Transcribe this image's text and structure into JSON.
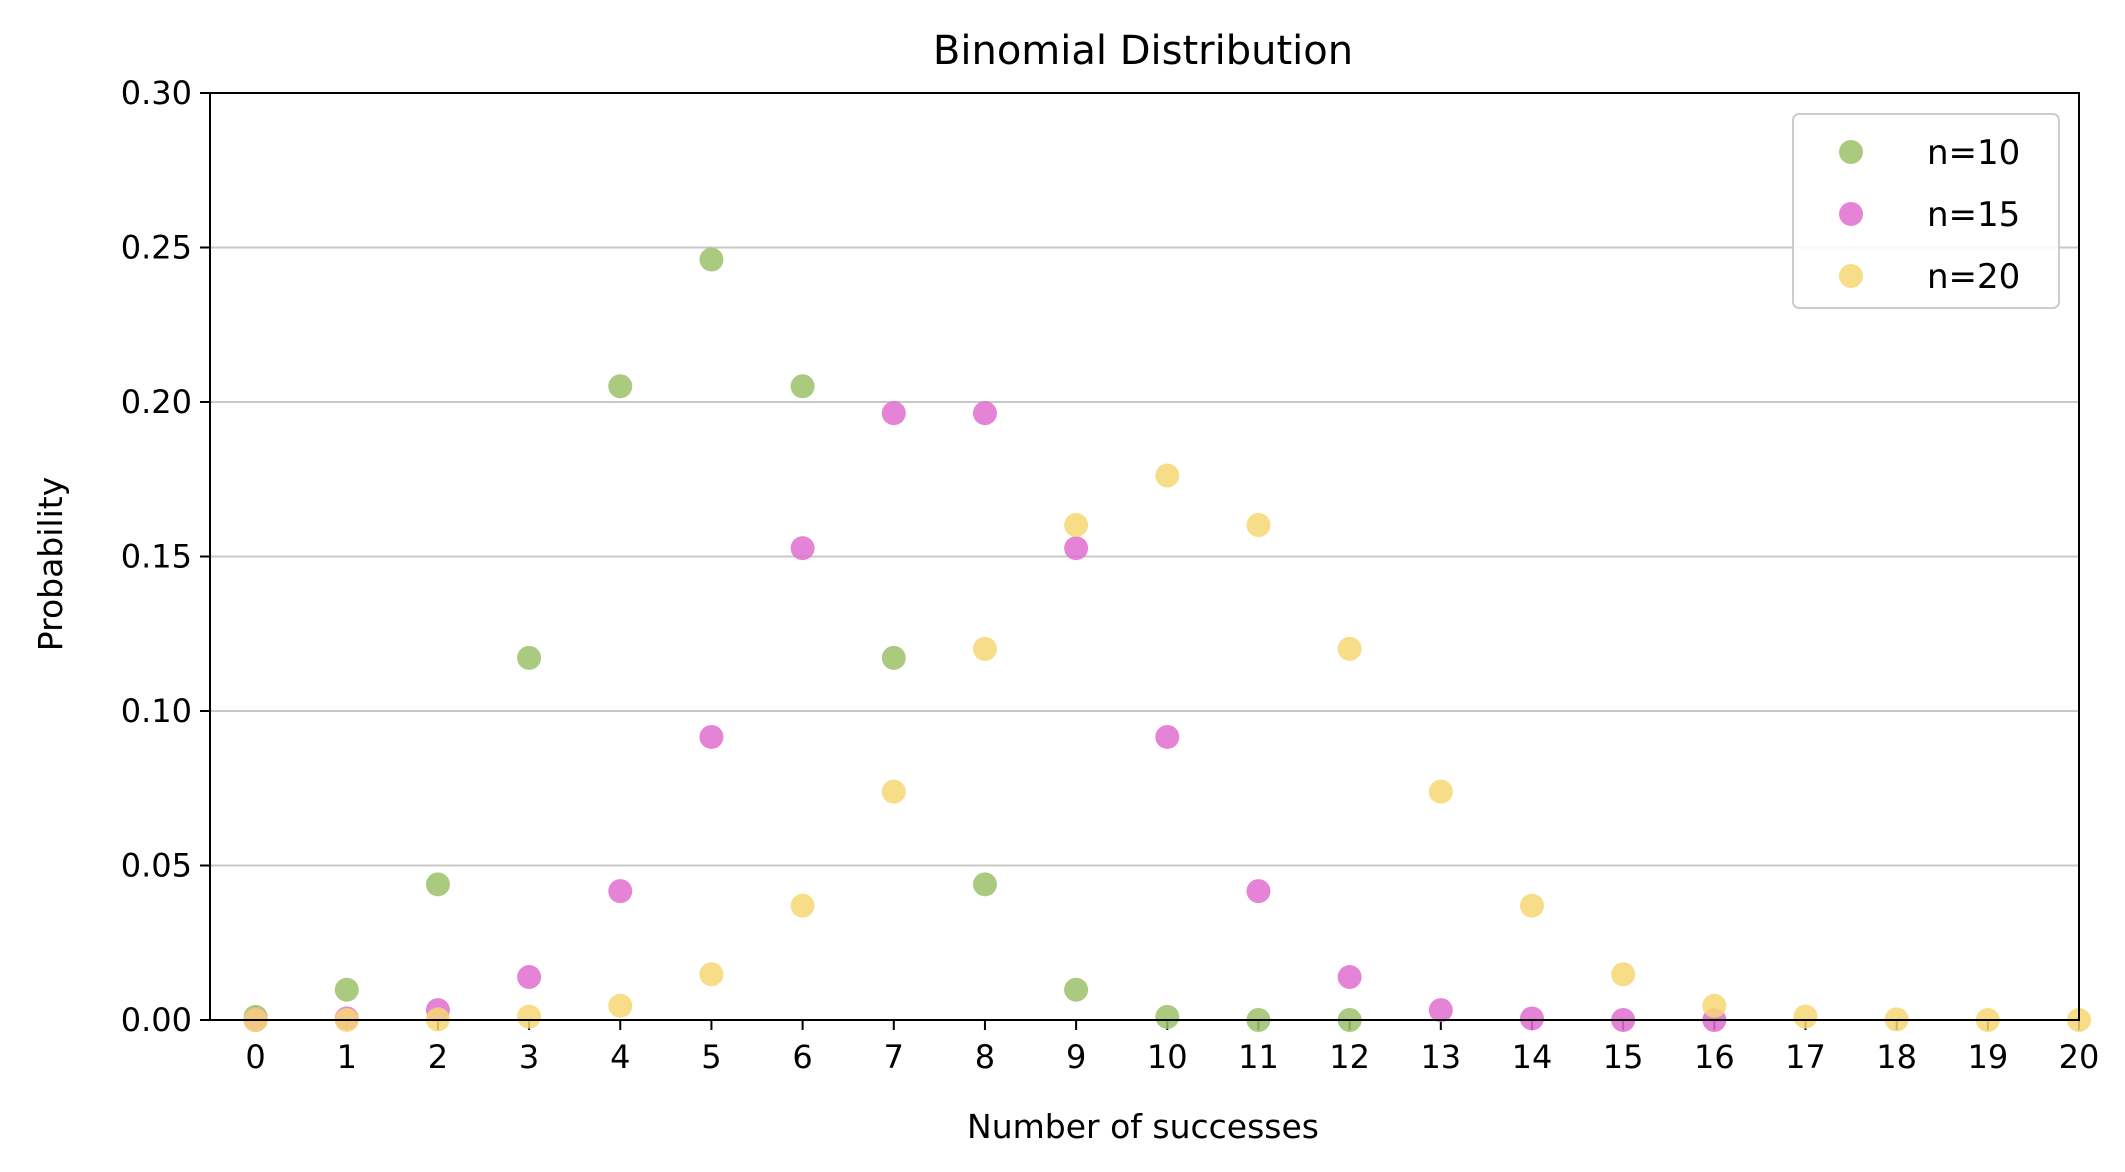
{
  "chart_data": {
    "type": "scatter",
    "title": "Binomial Distribution",
    "xlabel": "Number of successes",
    "ylabel": "Probability",
    "xlim": [
      -0.5,
      20
    ],
    "ylim": [
      0,
      0.3
    ],
    "x_ticks": [
      "0",
      "1",
      "2",
      "3",
      "4",
      "5",
      "6",
      "7",
      "8",
      "9",
      "10",
      "11",
      "12",
      "13",
      "14",
      "15",
      "16",
      "17",
      "18",
      "19",
      "20"
    ],
    "y_ticks": [
      "0.00",
      "0.05",
      "0.10",
      "0.15",
      "0.20",
      "0.25",
      "0.30"
    ],
    "grid": "y-axis horizontal lines",
    "legend_position": "top-right",
    "series": [
      {
        "name": "n=10",
        "color": "#9bc16a",
        "x": [
          0,
          1,
          2,
          3,
          4,
          5,
          6,
          7,
          8,
          9,
          10,
          11,
          12,
          13,
          14,
          15,
          16,
          17,
          18,
          19,
          20
        ],
        "y": [
          0.001,
          0.0098,
          0.0439,
          0.1172,
          0.2051,
          0.2461,
          0.2051,
          0.1172,
          0.0439,
          0.0098,
          0.001,
          0,
          0,
          null,
          null,
          null,
          null,
          null,
          null,
          null,
          null
        ]
      },
      {
        "name": "n=15",
        "color": "#e06fd0",
        "x": [
          0,
          1,
          2,
          3,
          4,
          5,
          6,
          7,
          8,
          9,
          10,
          11,
          12,
          13,
          14,
          15,
          16,
          17,
          18,
          19,
          20
        ],
        "y": [
          0.0,
          0.0005,
          0.0032,
          0.0139,
          0.0417,
          0.0916,
          0.1527,
          0.1964,
          0.1964,
          0.1527,
          0.0916,
          0.0417,
          0.0139,
          0.0032,
          0.0005,
          0.0,
          0,
          null,
          null,
          null,
          null
        ]
      },
      {
        "name": "n=20",
        "color": "#f7d774",
        "x": [
          0,
          1,
          2,
          3,
          4,
          5,
          6,
          7,
          8,
          9,
          10,
          11,
          12,
          13,
          14,
          15,
          16,
          17,
          18,
          19,
          20
        ],
        "y": [
          0.0,
          0.0,
          0.0002,
          0.0011,
          0.0046,
          0.0148,
          0.037,
          0.0739,
          0.1201,
          0.1602,
          0.1762,
          0.1602,
          0.1201,
          0.0739,
          0.037,
          0.0148,
          0.0046,
          0.0011,
          0.0002,
          0.0,
          0.0
        ]
      }
    ]
  }
}
